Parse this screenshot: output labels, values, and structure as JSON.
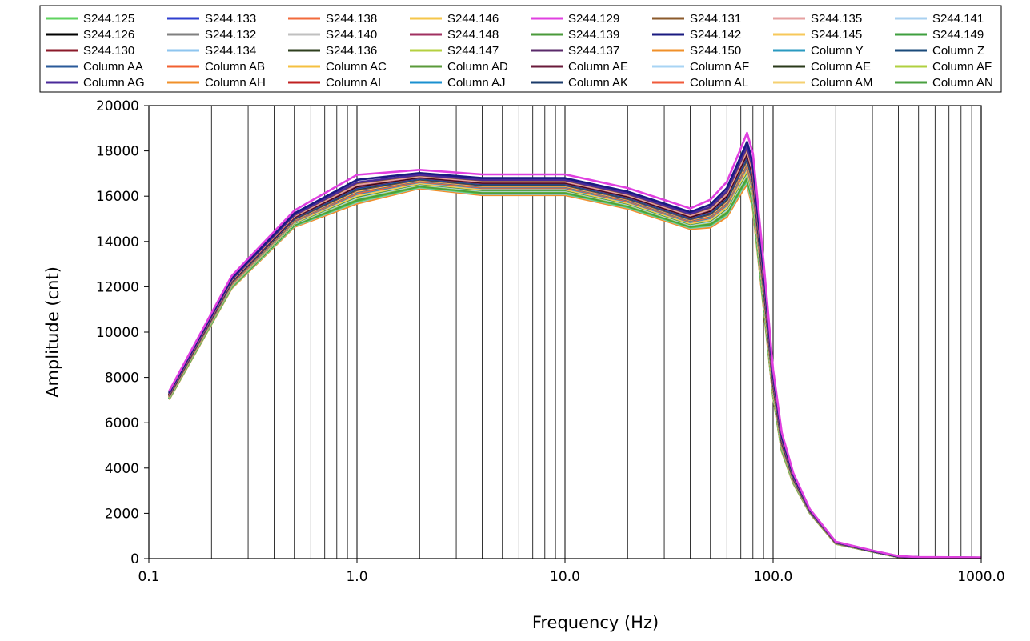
{
  "chart_data": {
    "type": "line",
    "xlabel": "Frequency (Hz)",
    "ylabel": "Amplitude  (cnt)",
    "x_scale": "log",
    "xlim": [
      0.1,
      1000.0
    ],
    "ylim": [
      0,
      20000
    ],
    "x_ticks": [
      "0.1",
      "1.0",
      "10.0",
      "100.0",
      "1000.0"
    ],
    "y_ticks": [
      "0",
      "2000",
      "4000",
      "6000",
      "8000",
      "10000",
      "12000",
      "14000",
      "16000",
      "18000",
      "20000"
    ],
    "grid": "vertical",
    "legend_position": "top",
    "x": [
      0.125,
      0.25,
      0.5,
      1.0,
      2.0,
      4.0,
      10.0,
      20.0,
      40.0,
      50.0,
      60.0,
      70.0,
      75.0,
      80.0,
      90.0,
      100.0,
      110.0,
      125.0,
      150.0,
      200.0,
      300.0,
      400.0,
      500.0,
      1000.0
    ],
    "profile_low": [
      7000,
      11900,
      14600,
      15600,
      16300,
      16000,
      16000,
      15400,
      14500,
      14550,
      15000,
      16000,
      16400,
      15300,
      11000,
      7100,
      4700,
      3300,
      2000,
      650,
      300,
      60,
      40,
      20
    ],
    "profile_high": [
      7400,
      12500,
      15400,
      17000,
      17200,
      17000,
      17000,
      16400,
      15500,
      15900,
      16700,
      18200,
      18900,
      18000,
      13200,
      8400,
      5600,
      3800,
      2200,
      750,
      360,
      110,
      70,
      50
    ],
    "series": [
      {
        "name": "S244.125",
        "color": "#5fd35f",
        "level": 0.12
      },
      {
        "name": "S244.133",
        "color": "#2f3fcf",
        "level": 0.55
      },
      {
        "name": "S244.138",
        "color": "#f26a3b",
        "level": 0.4
      },
      {
        "name": "S244.146",
        "color": "#f5c64a",
        "level": 0.3
      },
      {
        "name": "S244.129",
        "color": "#e040e0",
        "level": 0.96
      },
      {
        "name": "S244.131",
        "color": "#8b5a2b",
        "level": 0.7
      },
      {
        "name": "S244.135",
        "color": "#e6a0a0",
        "level": 0.65
      },
      {
        "name": "S244.141",
        "color": "#a8d0f0",
        "level": 0.25
      },
      {
        "name": "S244.126",
        "color": "#000000",
        "level": 0.6
      },
      {
        "name": "S244.132",
        "color": "#808080",
        "level": 0.5
      },
      {
        "name": "S244.140",
        "color": "#c0c0c0",
        "level": 0.35
      },
      {
        "name": "S244.148",
        "color": "#a03060",
        "level": 0.58
      },
      {
        "name": "S244.139",
        "color": "#4a9a3a",
        "level": 0.28
      },
      {
        "name": "S244.142",
        "color": "#1a1a80",
        "level": 0.8
      },
      {
        "name": "S244.145",
        "color": "#f7c85a",
        "level": 0.45
      },
      {
        "name": "S244.149",
        "color": "#3f9f3f",
        "level": 0.2
      },
      {
        "name": "S244.130",
        "color": "#8b1a2a",
        "level": 0.62
      },
      {
        "name": "S244.134",
        "color": "#8ec5ef",
        "level": 0.1
      },
      {
        "name": "S244.136",
        "color": "#2e3f1e",
        "level": 0.52
      },
      {
        "name": "S244.147",
        "color": "#b5d040",
        "level": 0.22
      },
      {
        "name": "S244.137",
        "color": "#5a2a6a",
        "level": 0.48
      },
      {
        "name": "S244.150",
        "color": "#f0902a",
        "level": 0.05
      },
      {
        "name": "Column Y",
        "color": "#2a9ac0",
        "level": 0.42
      },
      {
        "name": "Column Z",
        "color": "#1a4a7a",
        "level": 0.57
      },
      {
        "name": "Column AA",
        "color": "#2a5a9a",
        "level": 0.53
      },
      {
        "name": "Column AB",
        "color": "#f26030",
        "level": 0.38
      },
      {
        "name": "Column AC",
        "color": "#f5c040",
        "level": 0.33
      },
      {
        "name": "Column AD",
        "color": "#5a9a3a",
        "level": 0.27
      },
      {
        "name": "Column AE",
        "color": "#6a1a3a",
        "level": 0.63
      },
      {
        "name": "Column AF",
        "color": "#a8d4f4",
        "level": 0.24
      },
      {
        "name": "Column AE",
        "color": "#2a3a1a",
        "level": 0.51
      },
      {
        "name": "Column AF",
        "color": "#b0d040",
        "level": 0.23
      },
      {
        "name": "Column AG",
        "color": "#4a2a9a",
        "level": 0.72
      },
      {
        "name": "Column AH",
        "color": "#f0902a",
        "level": 0.07
      },
      {
        "name": "Column AI",
        "color": "#c02020",
        "level": 0.44
      },
      {
        "name": "Column AJ",
        "color": "#1a90d0",
        "level": 0.36
      },
      {
        "name": "Column AK",
        "color": "#1a3a6a",
        "level": 0.56
      },
      {
        "name": "Column AL",
        "color": "#f05a3a",
        "level": 0.41
      },
      {
        "name": "Column AM",
        "color": "#f5d070",
        "level": 0.31
      },
      {
        "name": "Column AN",
        "color": "#4aa040",
        "level": 0.15
      }
    ]
  }
}
